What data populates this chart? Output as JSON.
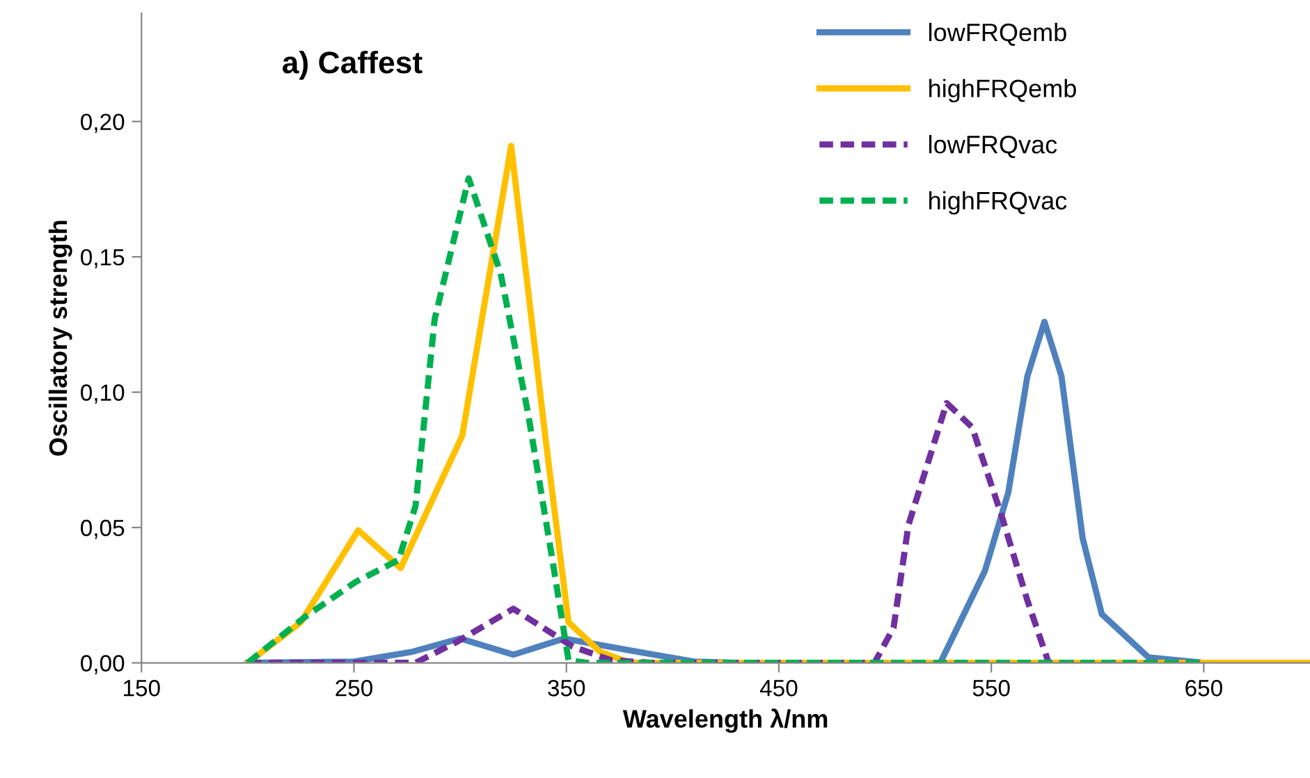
{
  "chart_data": {
    "type": "line",
    "title": "a) Caffest",
    "xlabel": "Wavelength λ/nm",
    "ylabel": "Oscillatory strength",
    "xlim": [
      150,
      700
    ],
    "xticks": [
      150,
      250,
      350,
      450,
      550,
      650
    ],
    "ylim": [
      0,
      0.24
    ],
    "yticks": [
      {
        "value": 0,
        "label": "0,00"
      },
      {
        "value": 0.05,
        "label": "0,05"
      },
      {
        "value": 0.1,
        "label": "0,10"
      },
      {
        "value": 0.15,
        "label": "0,15"
      },
      {
        "value": 0.2,
        "label": "0,20"
      }
    ],
    "grid": false,
    "legend": "top right",
    "marker": "none",
    "series": [
      {
        "name": "lowFRQemb",
        "color": "#4f81bd",
        "line_style": "solid",
        "x": [
          200,
          250,
          277,
          300,
          325,
          349,
          384,
          410,
          430,
          526,
          547,
          558,
          567,
          575,
          583,
          593,
          602,
          624,
          650
        ],
        "values": [
          0,
          0.0005,
          0.004,
          0.009,
          0.003,
          0.009,
          0.004,
          0.0005,
          0,
          0,
          0.034,
          0.063,
          0.106,
          0.126,
          0.106,
          0.046,
          0.018,
          0.002,
          0
        ]
      },
      {
        "name": "highFRQemb",
        "color": "#ffc000",
        "line_style": "solid",
        "x": [
          200,
          225,
          252,
          272,
          301,
          324,
          340,
          351,
          366,
          380,
          700
        ],
        "values": [
          0,
          0.015,
          0.049,
          0.035,
          0.084,
          0.191,
          0.084,
          0.015,
          0.004,
          0,
          0
        ]
      },
      {
        "name": "lowFRQvac",
        "color": "#7030a0",
        "line_style": "dashed",
        "x": [
          200,
          279,
          299,
          325,
          353,
          371,
          390,
          495,
          504,
          511,
          529,
          541,
          555,
          567,
          577,
          650
        ],
        "values": [
          0,
          0,
          0.008,
          0.02,
          0.006,
          0.001,
          0,
          0,
          0.013,
          0.051,
          0.096,
          0.087,
          0.054,
          0.023,
          0,
          0
        ]
      },
      {
        "name": "highFRQvac",
        "color": "#00b050",
        "line_style": "dashed",
        "x": [
          200,
          227,
          251,
          271,
          279,
          288,
          304,
          319,
          332,
          343,
          351,
          360,
          650
        ],
        "values": [
          0,
          0.017,
          0.03,
          0.038,
          0.058,
          0.127,
          0.179,
          0.144,
          0.092,
          0.04,
          0.001,
          0,
          0
        ]
      }
    ]
  }
}
